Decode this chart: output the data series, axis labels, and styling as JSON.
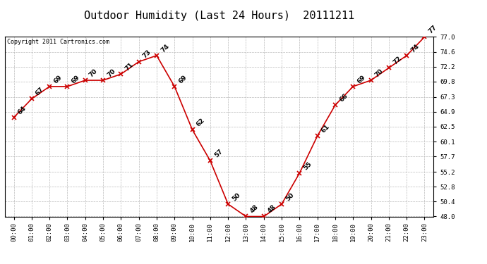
{
  "title": "Outdoor Humidity (Last 24 Hours)  20111211",
  "copyright_text": "Copyright 2011 Cartronics.com",
  "hours": [
    0,
    1,
    2,
    3,
    4,
    5,
    6,
    7,
    8,
    9,
    10,
    11,
    12,
    13,
    14,
    15,
    16,
    17,
    18,
    19,
    20,
    21,
    22,
    23
  ],
  "values": [
    64,
    67,
    69,
    69,
    70,
    70,
    71,
    73,
    74,
    69,
    62,
    57,
    50,
    48,
    48,
    50,
    55,
    61,
    66,
    69,
    70,
    72,
    74,
    77
  ],
  "x_labels": [
    "00:00",
    "01:00",
    "02:00",
    "03:00",
    "04:00",
    "05:00",
    "06:00",
    "07:00",
    "08:00",
    "09:00",
    "10:00",
    "11:00",
    "12:00",
    "13:00",
    "14:00",
    "15:00",
    "16:00",
    "17:00",
    "18:00",
    "19:00",
    "20:00",
    "21:00",
    "22:00",
    "23:00"
  ],
  "y_min": 48.0,
  "y_max": 77.0,
  "y_ticks": [
    48.0,
    50.4,
    52.8,
    55.2,
    57.7,
    60.1,
    62.5,
    64.9,
    67.3,
    69.8,
    72.2,
    74.6,
    77.0
  ],
  "line_color": "#cc0000",
  "marker_color": "#cc0000",
  "bg_color": "#ffffff",
  "plot_bg_color": "#ffffff",
  "grid_color": "#bbbbbb",
  "title_fontsize": 11,
  "label_fontsize": 6.5,
  "annotation_fontsize": 6.5,
  "copyright_fontsize": 6
}
